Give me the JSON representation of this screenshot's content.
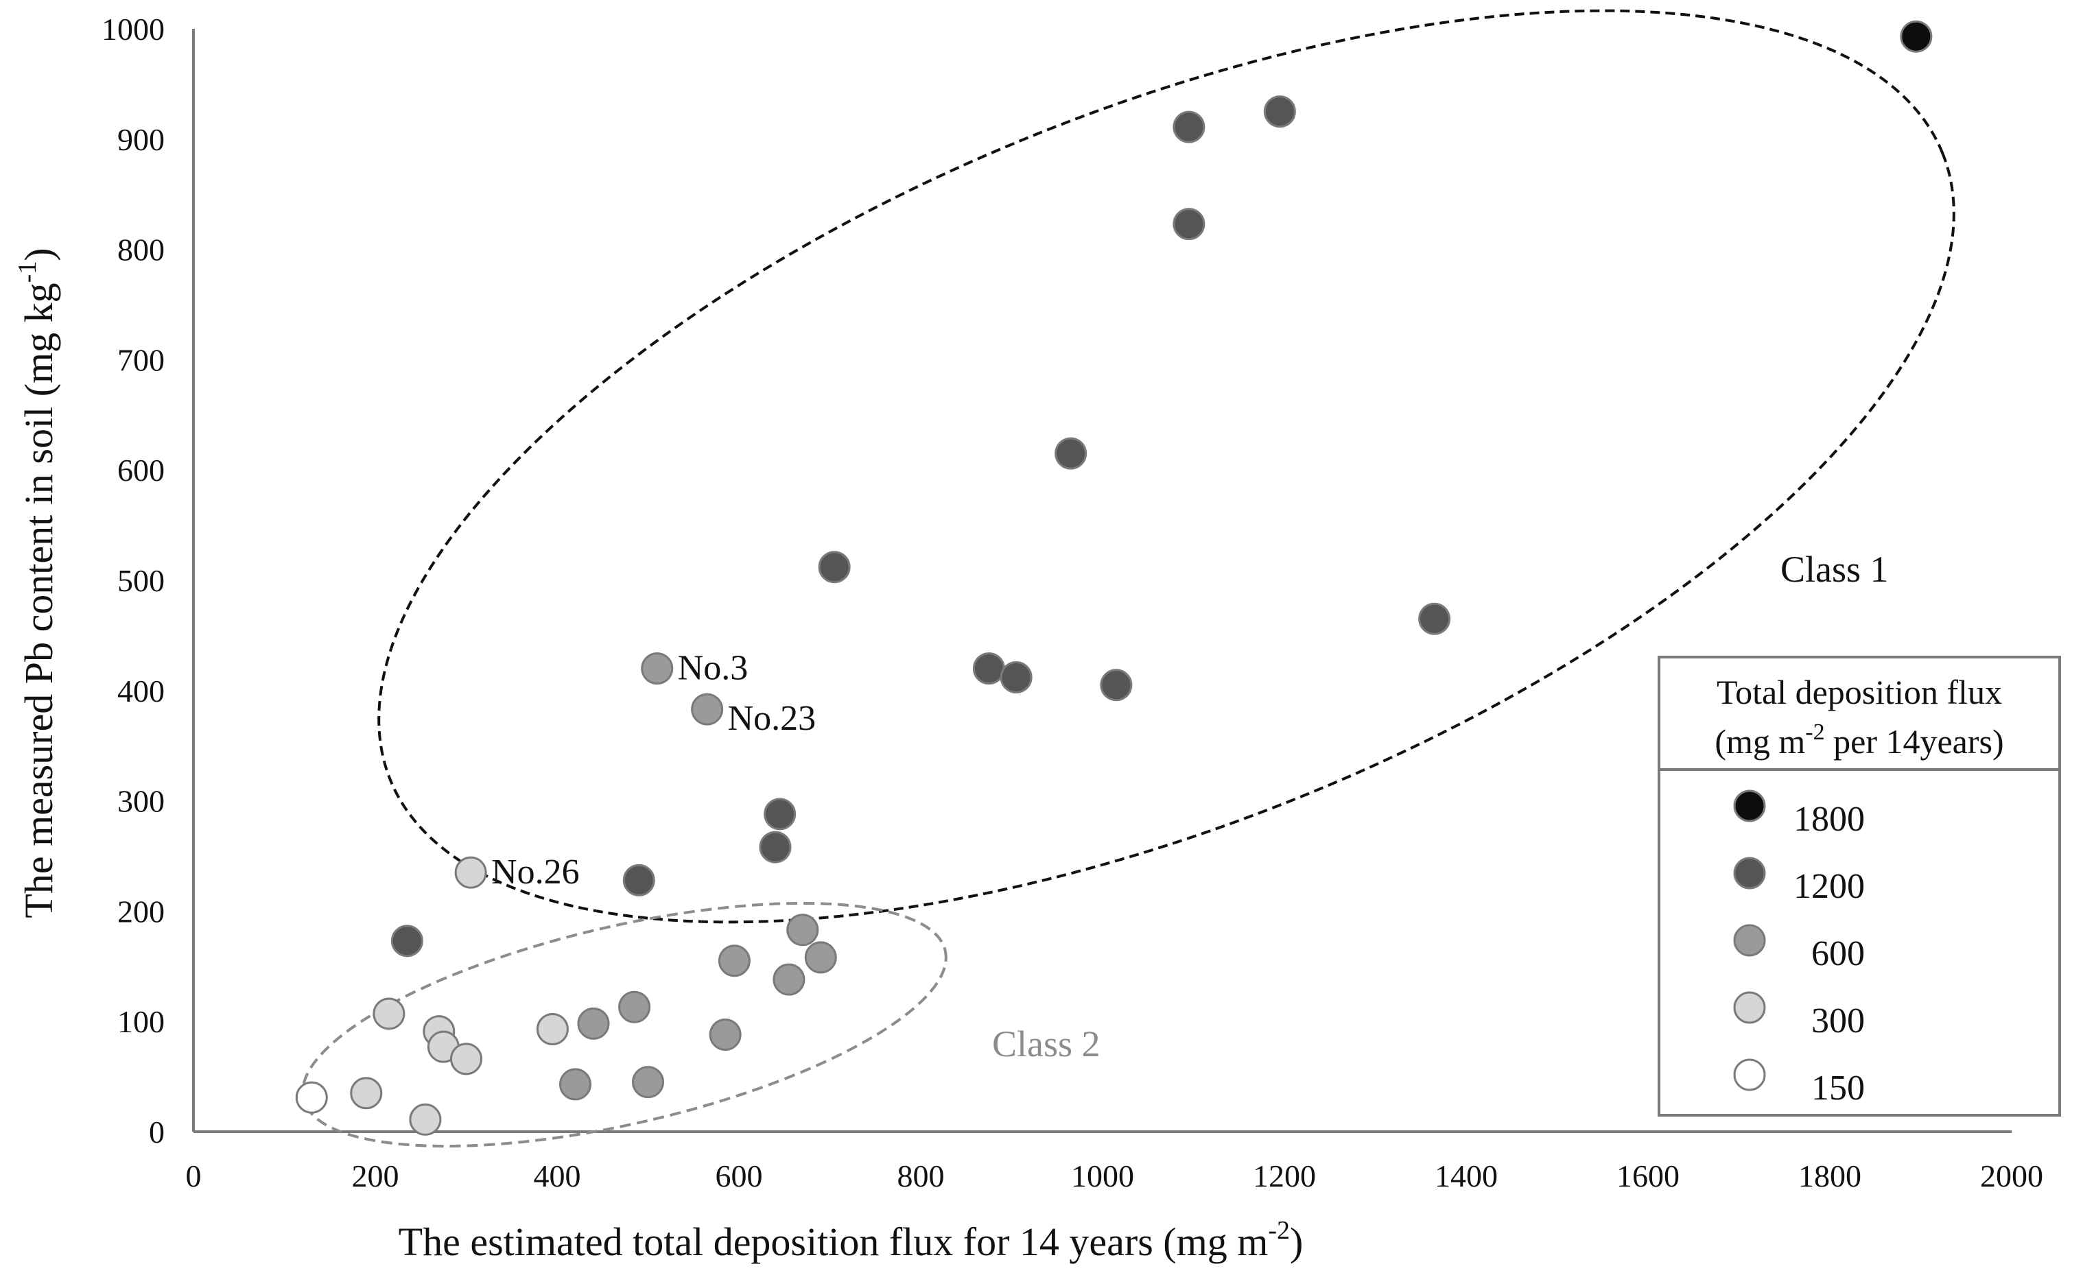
{
  "chart_data": {
    "type": "scatter",
    "title": "",
    "xlabel": "The estimated total deposition flux for 14 years (mg m",
    "xlabel_sup": "-2",
    "xlabel_end": ")",
    "ylabel": "The measured Pb content in soil (mg kg",
    "ylabel_sup": "-1",
    "ylabel_end": ")",
    "xlim": [
      0,
      2000
    ],
    "ylim": [
      0,
      1000
    ],
    "xticks": [
      "0",
      "200",
      "400",
      "600",
      "800",
      "1000",
      "1200",
      "1400",
      "1600",
      "1800",
      "2000"
    ],
    "yticks": [
      "0",
      "100",
      "200",
      "300",
      "400",
      "500",
      "600",
      "700",
      "800",
      "900",
      "1000"
    ],
    "grid": false,
    "legend": {
      "title_line1": "Total deposition flux",
      "title_line2_a": "(mg m",
      "title_line2_sup": "-2",
      "title_line2_b": " per 14years)",
      "placement": "bottom-right",
      "entries": [
        {
          "label": "1800",
          "color": "#0d0d0d"
        },
        {
          "label": "1200",
          "color": "#555555"
        },
        {
          "label": "600",
          "color": "#9a9a9a"
        },
        {
          "label": "300",
          "color": "#d6d6d6"
        },
        {
          "label": "150",
          "color": "#ffffff"
        }
      ]
    },
    "series": [
      {
        "name": "1800",
        "color": "#0d0d0d",
        "points": [
          [
            1895,
            993
          ]
        ]
      },
      {
        "name": "1200",
        "color": "#555555",
        "points": [
          [
            1095,
            911
          ],
          [
            1195,
            925
          ],
          [
            1095,
            823
          ],
          [
            965,
            615
          ],
          [
            705,
            512
          ],
          [
            875,
            420
          ],
          [
            905,
            412
          ],
          [
            1015,
            405
          ],
          [
            1365,
            465
          ],
          [
            645,
            288
          ],
          [
            640,
            258
          ],
          [
            490,
            228
          ],
          [
            235,
            173
          ]
        ]
      },
      {
        "name": "600",
        "color": "#9a9a9a",
        "points": [
          [
            510,
            420
          ],
          [
            565,
            383
          ],
          [
            670,
            183
          ],
          [
            690,
            158
          ],
          [
            655,
            138
          ],
          [
            595,
            155
          ],
          [
            485,
            113
          ],
          [
            440,
            98
          ],
          [
            420,
            43
          ],
          [
            500,
            45
          ],
          [
            585,
            88
          ]
        ]
      },
      {
        "name": "300",
        "color": "#d6d6d6",
        "points": [
          [
            305,
            235
          ],
          [
            215,
            107
          ],
          [
            270,
            91
          ],
          [
            275,
            77
          ],
          [
            300,
            66
          ],
          [
            395,
            93
          ],
          [
            190,
            35
          ],
          [
            255,
            11
          ]
        ]
      },
      {
        "name": "150",
        "color": "#ffffff",
        "points": [
          [
            130,
            31
          ]
        ]
      }
    ],
    "annotations": [
      {
        "text": "No.3",
        "x": 510,
        "y": 420
      },
      {
        "text": "No.23",
        "x": 565,
        "y": 383
      },
      {
        "text": "No.26",
        "x": 305,
        "y": 235
      }
    ],
    "class_labels": [
      {
        "text": "Class 1",
        "color": "#111111"
      },
      {
        "text": "Class 2",
        "color": "#8c8c8c"
      }
    ]
  }
}
